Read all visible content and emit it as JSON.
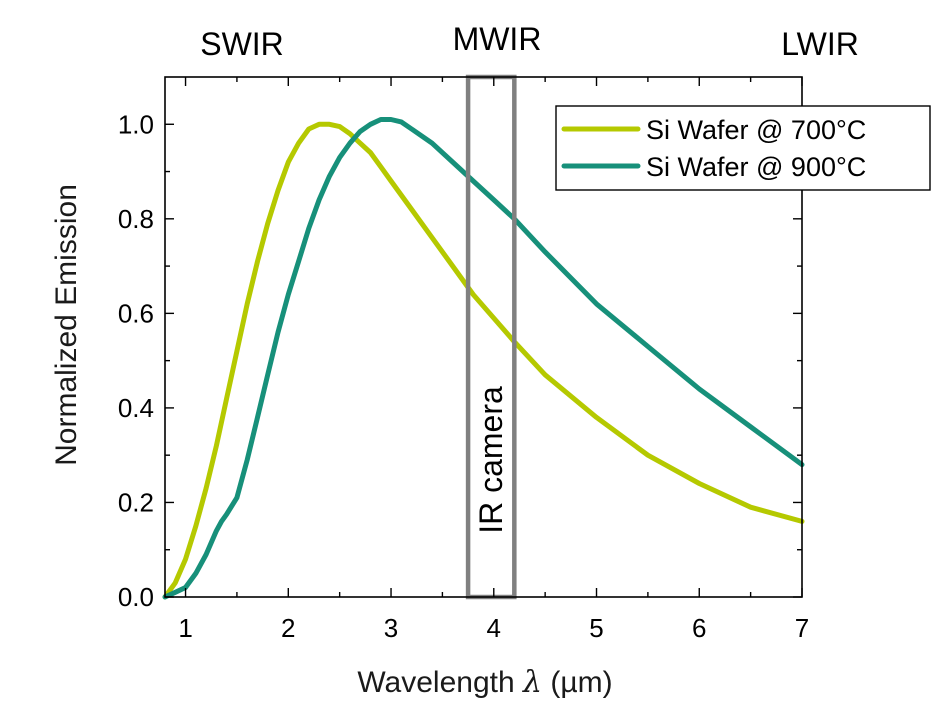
{
  "chart_data": {
    "type": "line",
    "title": "",
    "xlabel_text": "Wavelength ",
    "xlabel_symbol": "λ",
    "xlabel_unit": " (µm)",
    "ylabel": "Normalized Emission",
    "xlim": [
      0.8,
      7
    ],
    "ylim": [
      0,
      1.1
    ],
    "x_ticks": [
      1,
      2,
      3,
      4,
      5,
      6,
      7
    ],
    "y_ticks": [
      0.0,
      0.2,
      0.4,
      0.6,
      0.8,
      1.0
    ],
    "y_tick_labels": [
      "0.0",
      "0.2",
      "0.4",
      "0.6",
      "0.8",
      "1.0"
    ],
    "x_minor_ticks": [
      1.5,
      2.5,
      3.5,
      4.5,
      5.5,
      6.5
    ],
    "y_minor_ticks": [
      0.1,
      0.3,
      0.5,
      0.7,
      0.9
    ],
    "legend_position": "top-right",
    "region_labels": [
      "SWIR",
      "MWIR",
      "LWIR"
    ],
    "highlight_band": {
      "label": "IR camera",
      "x_range": [
        3.75,
        4.2
      ],
      "color": "#808080"
    },
    "series": [
      {
        "name": "Si Wafer @ 700°C",
        "color": "#b5c900",
        "x": [
          0.8,
          0.9,
          1.0,
          1.1,
          1.2,
          1.3,
          1.4,
          1.5,
          1.6,
          1.7,
          1.8,
          1.9,
          2.0,
          2.1,
          2.2,
          2.3,
          2.4,
          2.5,
          2.6,
          2.7,
          2.8,
          2.9,
          3.0,
          3.2,
          3.4,
          3.6,
          3.8,
          4.0,
          4.2,
          4.5,
          5.0,
          5.5,
          6.0,
          6.5,
          7.0
        ],
        "y": [
          0.0,
          0.03,
          0.08,
          0.15,
          0.23,
          0.32,
          0.42,
          0.52,
          0.62,
          0.71,
          0.79,
          0.86,
          0.92,
          0.96,
          0.99,
          1.0,
          1.0,
          0.995,
          0.98,
          0.96,
          0.94,
          0.91,
          0.88,
          0.82,
          0.76,
          0.7,
          0.64,
          0.59,
          0.54,
          0.47,
          0.38,
          0.3,
          0.24,
          0.19,
          0.16
        ]
      },
      {
        "name": "Si Wafer @ 900°C",
        "color": "#17907a",
        "x": [
          0.8,
          0.9,
          1.0,
          1.1,
          1.2,
          1.3,
          1.35,
          1.4,
          1.5,
          1.6,
          1.7,
          1.8,
          1.9,
          2.0,
          2.1,
          2.2,
          2.3,
          2.4,
          2.5,
          2.6,
          2.7,
          2.8,
          2.9,
          3.0,
          3.1,
          3.2,
          3.4,
          3.6,
          3.8,
          4.0,
          4.2,
          4.5,
          5.0,
          5.5,
          6.0,
          6.5,
          7.0
        ],
        "y": [
          0.0,
          0.01,
          0.02,
          0.05,
          0.09,
          0.14,
          0.16,
          0.175,
          0.21,
          0.29,
          0.38,
          0.47,
          0.56,
          0.64,
          0.71,
          0.78,
          0.84,
          0.89,
          0.93,
          0.96,
          0.985,
          1.0,
          1.01,
          1.01,
          1.005,
          0.99,
          0.96,
          0.92,
          0.88,
          0.84,
          0.8,
          0.73,
          0.62,
          0.53,
          0.44,
          0.36,
          0.28
        ]
      }
    ]
  }
}
